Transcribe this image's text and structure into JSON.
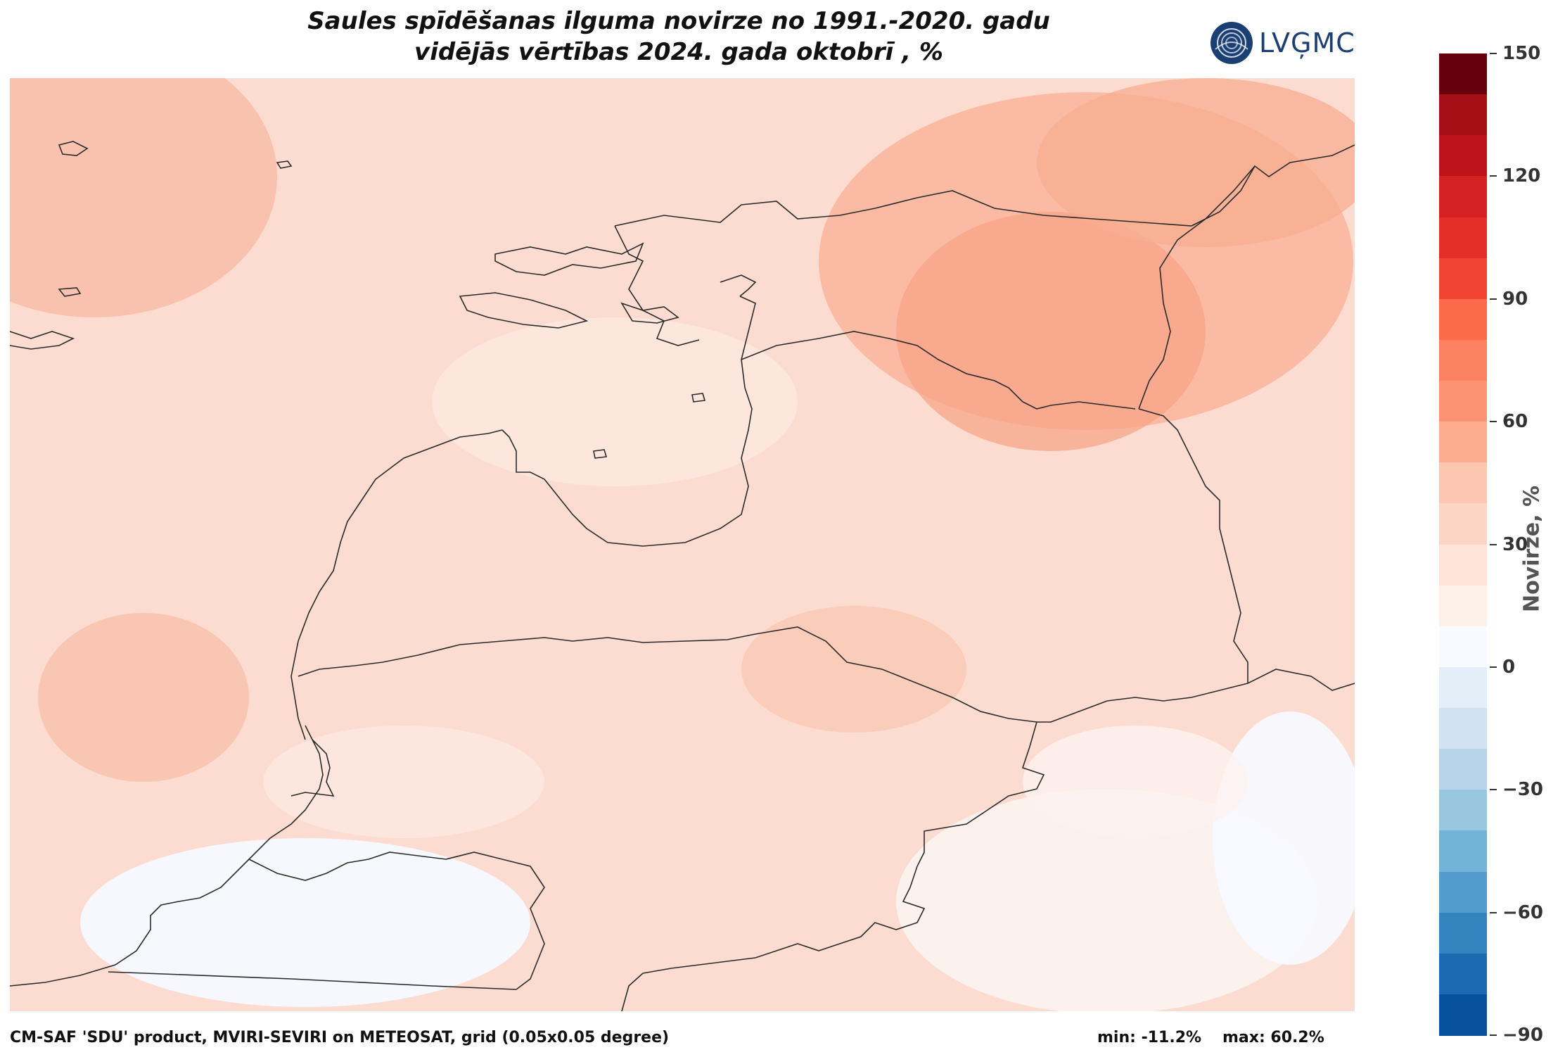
{
  "title": {
    "line1": "Saules spīdēšanas ilguma novirze no 1991.-2020. gadu",
    "line2": "vidējās vērtības 2024. gada oktobrī , %"
  },
  "logo": {
    "text": "LVĢMC"
  },
  "colorbar": {
    "label": "Novirze, %",
    "ticks": [
      "150",
      "120",
      "90",
      "60",
      "30",
      "0",
      "−30",
      "−60",
      "−90"
    ],
    "steps": [
      "#67000d",
      "#a50f15",
      "#bc141a",
      "#d42121",
      "#e32f27",
      "#f14432",
      "#fb6a4a",
      "#fc8161",
      "#fc9474",
      "#fcab8f",
      "#fdc6b0",
      "#fdd5c4",
      "#fee4d8",
      "#fef1ea",
      "#f7fbff",
      "#e3eef9",
      "#d0e1f2",
      "#b7d4ea",
      "#99c7e0",
      "#74b3d8",
      "#519ccc",
      "#3484bf",
      "#1c6aaf",
      "#08519c"
    ]
  },
  "footer": {
    "source": "CM-SAF 'SDU' product, MVIRI-SEVIRI on METEOSAT, grid (0.05x0.05 degree)",
    "min": "min: -11.2%",
    "max": "max: 60.2%"
  }
}
